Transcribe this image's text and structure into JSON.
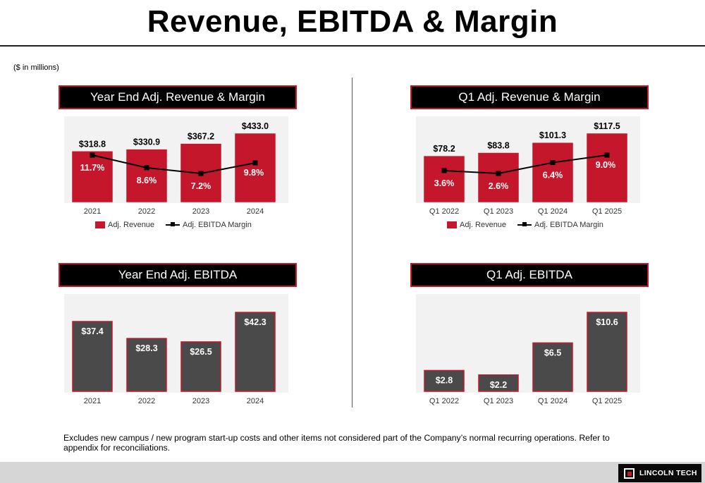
{
  "header": {
    "title": "Revenue, EBITDA & Margin",
    "units_note": "($ in millions)"
  },
  "panels": {
    "ye_rev": {
      "heading": "Year End Adj. Revenue & Margin"
    },
    "q1_rev": {
      "heading": "Q1 Adj. Revenue & Margin"
    },
    "ye_ebitda": {
      "heading": "Year End Adj. EBITDA"
    },
    "q1_ebitda": {
      "heading": "Q1 Adj. EBITDA"
    }
  },
  "legend": {
    "revenue": "Adj. Revenue",
    "margin": "Adj. EBITDA Margin"
  },
  "footnote": "Excludes new campus / new program start-up costs and other items not considered part of the Company’s normal recurring operations.  Refer to appendix for reconciliations.",
  "logo": {
    "text": "LINCOLN TECH"
  },
  "colors": {
    "revenue_bar": "#c4172c",
    "ebitda_bar": "#4a4a4a",
    "bar_outline": "#c4172c",
    "margin_line": "#000000"
  },
  "chart_data": [
    {
      "id": "ye_rev",
      "type": "bar",
      "title": "Year End Adj. Revenue & Margin",
      "categories": [
        "2021",
        "2022",
        "2023",
        "2024"
      ],
      "series": [
        {
          "name": "Adj. Revenue",
          "values": [
            318.8,
            330.9,
            367.2,
            433.0
          ],
          "labels": [
            "$318.8",
            "$330.9",
            "$367.2",
            "$433.0"
          ]
        },
        {
          "name": "Adj. EBITDA Margin",
          "type": "line",
          "values": [
            11.7,
            8.6,
            7.2,
            9.8
          ],
          "labels": [
            "11.7%",
            "8.6%",
            "7.2%",
            "9.8%"
          ]
        }
      ],
      "legend": "bottom"
    },
    {
      "id": "q1_rev",
      "type": "bar",
      "title": "Q1 Adj. Revenue & Margin",
      "categories": [
        "Q1 2022",
        "Q1 2023",
        "Q1 2024",
        "Q1 2025"
      ],
      "series": [
        {
          "name": "Adj. Revenue",
          "values": [
            78.2,
            83.8,
            101.3,
            117.5
          ],
          "labels": [
            "$78.2",
            "$83.8",
            "$101.3",
            "$117.5"
          ]
        },
        {
          "name": "Adj. EBITDA Margin",
          "type": "line",
          "values": [
            3.6,
            2.6,
            6.4,
            9.0
          ],
          "labels": [
            "3.6%",
            "2.6%",
            "6.4%",
            "9.0%"
          ]
        }
      ],
      "legend": "bottom"
    },
    {
      "id": "ye_ebitda",
      "type": "bar",
      "title": "Year End Adj. EBITDA",
      "categories": [
        "2021",
        "2022",
        "2023",
        "2024"
      ],
      "values": [
        37.4,
        28.3,
        26.5,
        42.3
      ],
      "labels": [
        "$37.4",
        "$28.3",
        "$26.5",
        "$42.3"
      ]
    },
    {
      "id": "q1_ebitda",
      "type": "bar",
      "title": "Q1 Adj. EBITDA",
      "categories": [
        "Q1 2022",
        "Q1 2023",
        "Q1 2024",
        "Q1 2025"
      ],
      "values": [
        2.8,
        2.2,
        6.5,
        10.6
      ],
      "labels": [
        "$2.8",
        "$2.2",
        "$6.5",
        "$10.6"
      ]
    }
  ]
}
